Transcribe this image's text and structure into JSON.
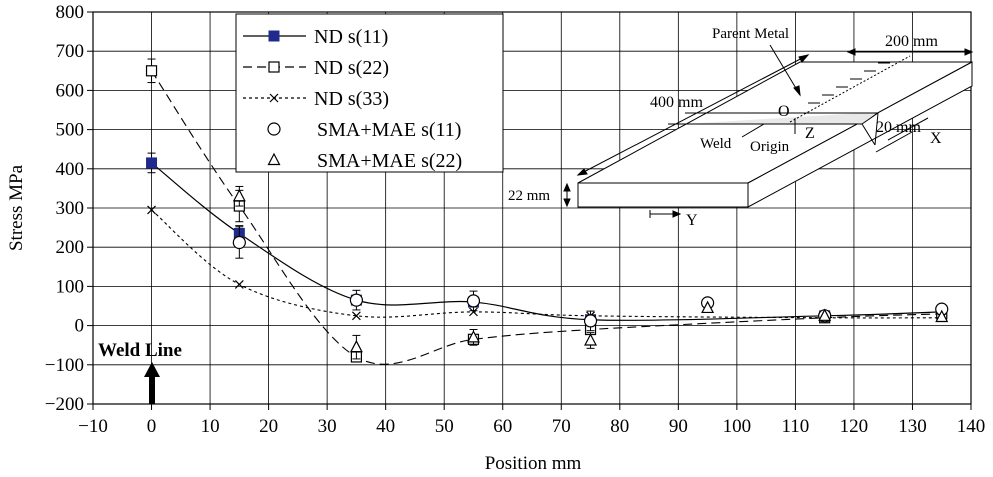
{
  "chart_data": {
    "type": "line",
    "title": "",
    "xlabel": "Position mm",
    "ylabel": "Stress MPa",
    "xlim": [
      -10,
      140
    ],
    "ylim": [
      -200,
      800
    ],
    "x_ticks": [
      -10,
      0,
      10,
      20,
      30,
      40,
      50,
      60,
      70,
      80,
      90,
      100,
      110,
      120,
      130,
      140
    ],
    "y_ticks": [
      -200,
      -100,
      0,
      100,
      200,
      300,
      400,
      500,
      600,
      700,
      800
    ],
    "x_tick_labels": [
      "−10",
      "0",
      "10",
      "20",
      "30",
      "40",
      "50",
      "60",
      "70",
      "80",
      "90",
      "100",
      "110",
      "120",
      "130",
      "140"
    ],
    "y_tick_labels": [
      "−200",
      "−100",
      "0",
      "100",
      "200",
      "300",
      "400",
      "500",
      "600",
      "700",
      "800"
    ],
    "grid": true,
    "legend_position": "top-left",
    "annotation": "Weld Line",
    "series": [
      {
        "name": "ND s(11)",
        "marker": "filled-square",
        "line": "solid",
        "color": "#1f2a8c",
        "x": [
          0,
          15,
          35,
          55,
          75,
          115,
          135
        ],
        "y": [
          415,
          235,
          65,
          60,
          15,
          25,
          35
        ],
        "error": [
          25,
          20,
          0,
          0,
          0,
          0,
          0
        ]
      },
      {
        "name": "ND s(22)",
        "marker": "open-square",
        "line": "dashed",
        "color": "#000000",
        "x": [
          0,
          15,
          35,
          55,
          75,
          115,
          135
        ],
        "y": [
          650,
          305,
          -80,
          -35,
          -10,
          20,
          30
        ],
        "error": [
          30,
          40,
          0,
          0,
          0,
          0,
          0
        ]
      },
      {
        "name": "ND s(33)",
        "marker": "cross",
        "line": "dotted",
        "color": "#000000",
        "x": [
          0,
          15,
          35,
          55,
          75,
          115,
          135
        ],
        "y": [
          295,
          105,
          25,
          35,
          25,
          20,
          20
        ],
        "error": [
          0,
          0,
          0,
          0,
          0,
          0,
          0
        ]
      },
      {
        "name": "SMA+MAE s(11)",
        "marker": "open-circle",
        "line": "none",
        "color": "#000000",
        "x": [
          15,
          35,
          55,
          75,
          95,
          115,
          135
        ],
        "y": [
          212,
          65,
          63,
          12,
          58,
          25,
          42
        ],
        "error": [
          40,
          25,
          25,
          25,
          0,
          0,
          0
        ]
      },
      {
        "name": "SMA+MAE s(22)",
        "marker": "open-triangle",
        "line": "none",
        "color": "#000000",
        "x": [
          15,
          35,
          55,
          75,
          95,
          115,
          135
        ],
        "y": [
          330,
          -55,
          -30,
          -38,
          45,
          25,
          22
        ],
        "error": [
          25,
          30,
          20,
          20,
          0,
          0,
          0
        ]
      }
    ]
  },
  "schematic": {
    "labels": {
      "parent_metal": "Parent Metal",
      "width_200": "200 mm",
      "length_400": "400 mm",
      "origin_o": "O",
      "axis_z": "Z",
      "width_20": "20 mm",
      "axis_x": "X",
      "weld": "Weld",
      "origin": "Origin",
      "thickness_22": "22 mm",
      "axis_y": "Y"
    }
  }
}
